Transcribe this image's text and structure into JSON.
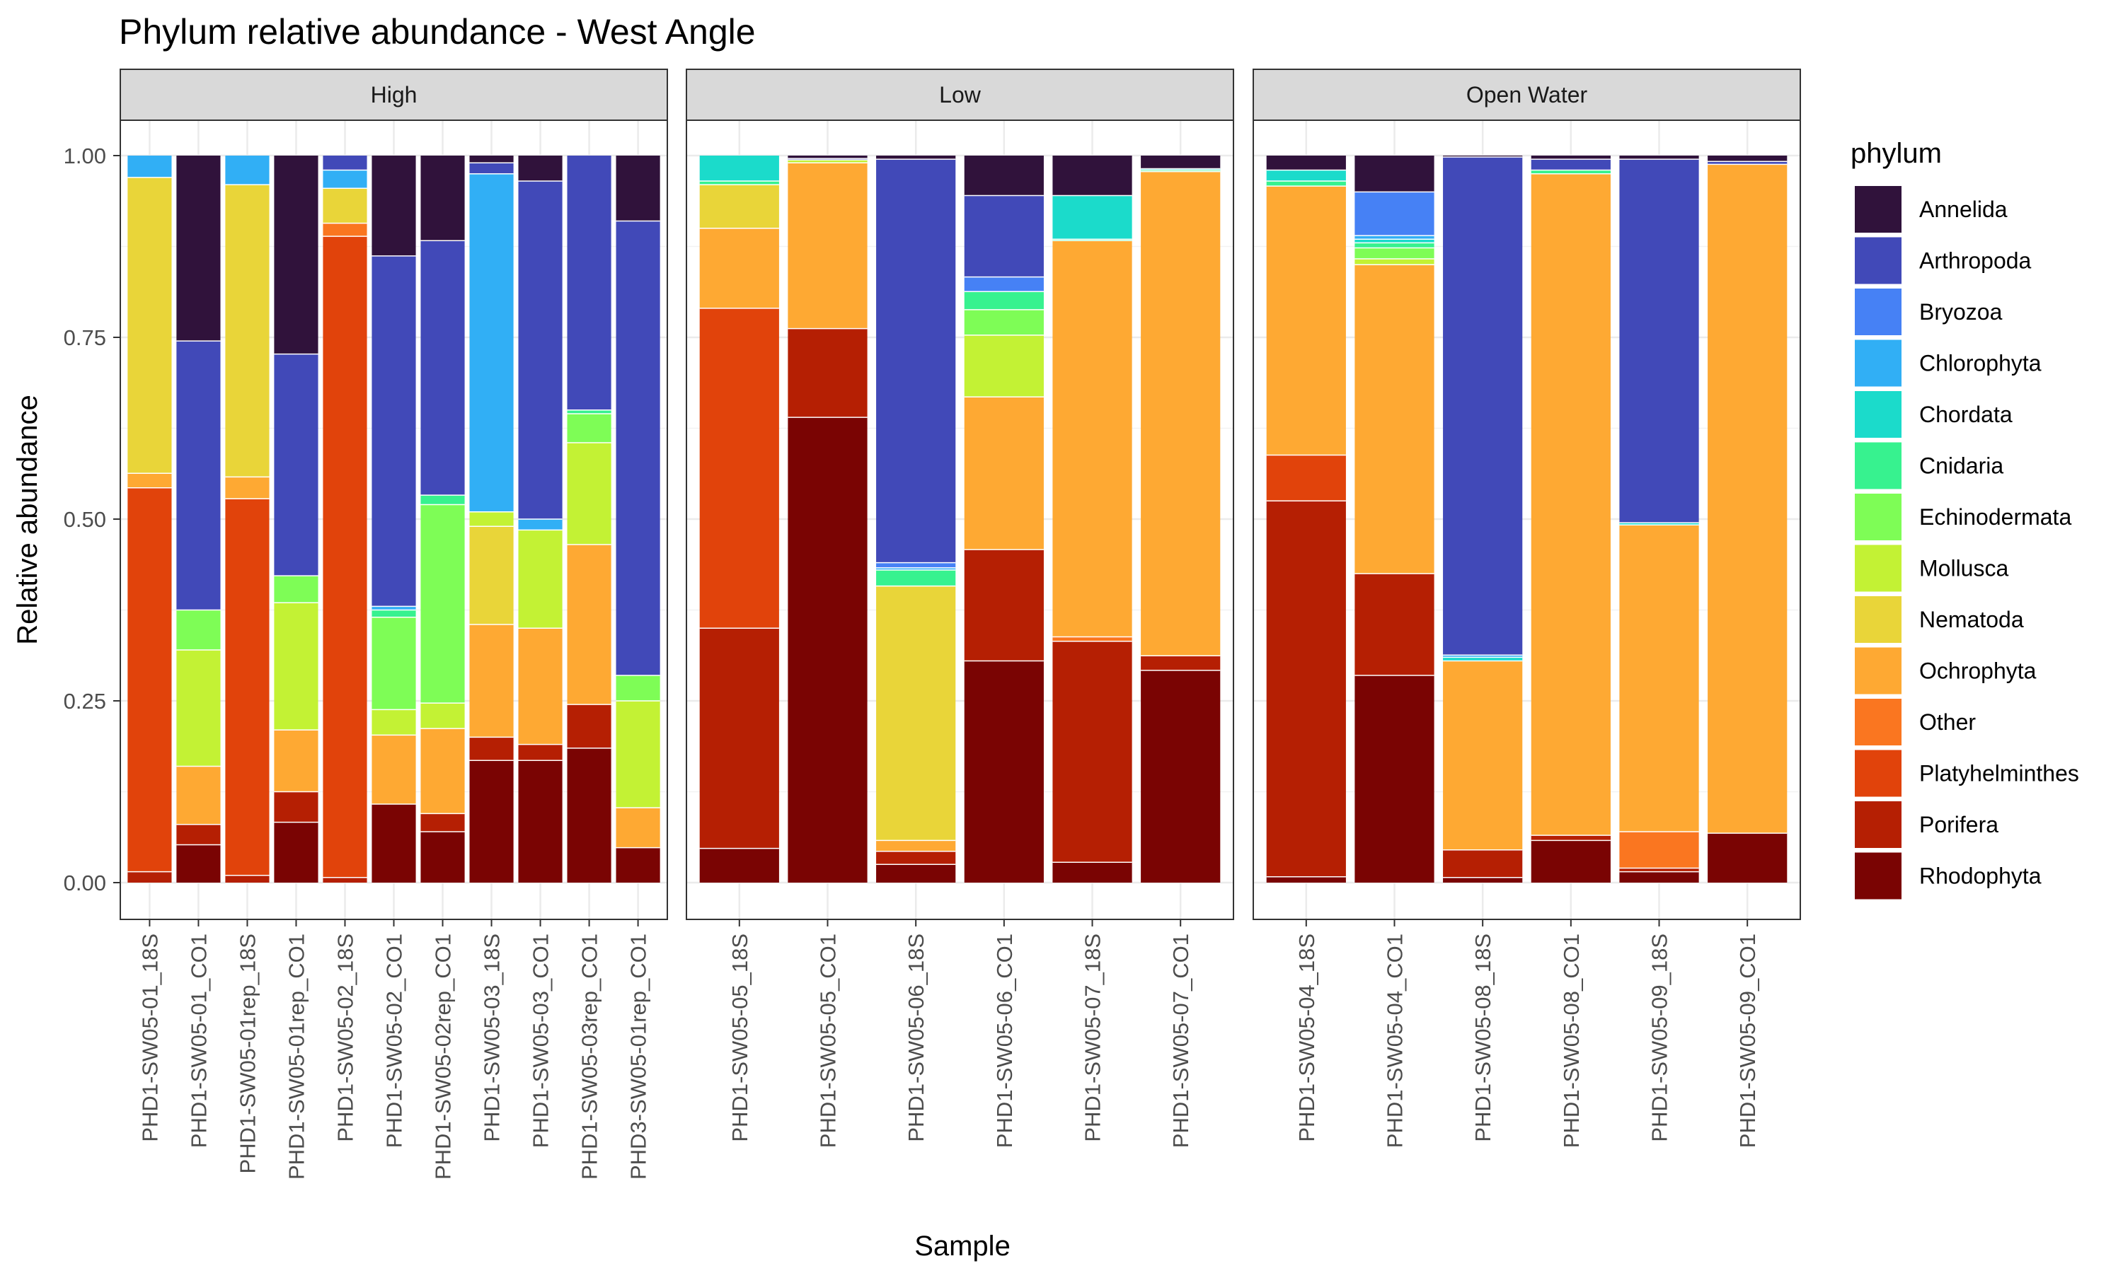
{
  "chart_data": {
    "type": "bar",
    "stacked": true,
    "title": "Phylum relative abundance - West Angle",
    "xlabel": "Sample",
    "ylabel": "Relative abundance",
    "ylim": [
      0,
      1
    ],
    "yticks": [
      0,
      0.25,
      0.5,
      0.75,
      1
    ],
    "ytick_labels": [
      "0.00",
      "0.25",
      "0.50",
      "0.75",
      "1.00"
    ],
    "grid": true,
    "legend_position": "right",
    "legend": {
      "title": "phylum",
      "entries": [
        {
          "name": "Annelida",
          "color": "#30123b"
        },
        {
          "name": "Arthropoda",
          "color": "#4149b8"
        },
        {
          "name": "Bryozoa",
          "color": "#4681f5"
        },
        {
          "name": "Chlorophyta",
          "color": "#31aff5"
        },
        {
          "name": "Chordata",
          "color": "#1bdbcb"
        },
        {
          "name": "Cnidaria",
          "color": "#37f28f"
        },
        {
          "name": "Echinodermata",
          "color": "#7efd56"
        },
        {
          "name": "Mollusca",
          "color": "#c3f234"
        },
        {
          "name": "Nematoda",
          "color": "#e9d539"
        },
        {
          "name": "Ochrophyta",
          "color": "#fea933"
        },
        {
          "name": "Other",
          "color": "#fa7620"
        },
        {
          "name": "Platyhelminthes",
          "color": "#e1430b"
        },
        {
          "name": "Porifera",
          "color": "#b51f03"
        },
        {
          "name": "Rhodophyta",
          "color": "#7a0403"
        }
      ]
    },
    "stack_order": [
      "Rhodophyta",
      "Porifera",
      "Platyhelminthes",
      "Other",
      "Ochrophyta",
      "Nematoda",
      "Mollusca",
      "Echinodermata",
      "Cnidaria",
      "Chordata",
      "Chlorophyta",
      "Bryozoa",
      "Arthropoda",
      "Annelida"
    ],
    "facets": [
      {
        "label": "High",
        "samples": [
          {
            "name": "PHD1-SW05-01_18S",
            "values": {
              "Rhodophyta": 0,
              "Porifera": 0.015,
              "Platyhelminthes": 0.528,
              "Other": 0,
              "Ochrophyta": 0.02,
              "Nematoda": 0.407,
              "Mollusca": 0,
              "Echinodermata": 0,
              "Cnidaria": 0,
              "Chordata": 0,
              "Chlorophyta": 0.03,
              "Bryozoa": 0,
              "Arthropoda": 0,
              "Annelida": 0
            }
          },
          {
            "name": "PHD1-SW05-01_CO1",
            "values": {
              "Rhodophyta": 0.052,
              "Porifera": 0.028,
              "Platyhelminthes": 0,
              "Other": 0,
              "Ochrophyta": 0.08,
              "Nematoda": 0,
              "Mollusca": 0.16,
              "Echinodermata": 0.055,
              "Cnidaria": 0,
              "Chordata": 0,
              "Chlorophyta": 0,
              "Bryozoa": 0,
              "Arthropoda": 0.37,
              "Annelida": 0.255
            }
          },
          {
            "name": "PHD1-SW05-01rep_18S",
            "values": {
              "Rhodophyta": 0,
              "Porifera": 0.01,
              "Platyhelminthes": 0.518,
              "Other": 0,
              "Ochrophyta": 0.03,
              "Nematoda": 0.402,
              "Mollusca": 0,
              "Echinodermata": 0,
              "Cnidaria": 0,
              "Chordata": 0,
              "Chlorophyta": 0.04,
              "Bryozoa": 0,
              "Arthropoda": 0,
              "Annelida": 0
            }
          },
          {
            "name": "PHD1-SW05-01rep_CO1",
            "values": {
              "Rhodophyta": 0.083,
              "Porifera": 0.042,
              "Platyhelminthes": 0,
              "Other": 0,
              "Ochrophyta": 0.085,
              "Nematoda": 0,
              "Mollusca": 0.175,
              "Echinodermata": 0.037,
              "Cnidaria": 0,
              "Chordata": 0,
              "Chlorophyta": 0,
              "Bryozoa": 0,
              "Arthropoda": 0.305,
              "Annelida": 0.273
            }
          },
          {
            "name": "PHD1-SW05-02_18S",
            "values": {
              "Rhodophyta": 0,
              "Porifera": 0.007,
              "Platyhelminthes": 0.882,
              "Other": 0.018,
              "Ochrophyta": 0,
              "Nematoda": 0.048,
              "Mollusca": 0,
              "Echinodermata": 0,
              "Cnidaria": 0,
              "Chordata": 0,
              "Chlorophyta": 0.025,
              "Bryozoa": 0,
              "Arthropoda": 0.02,
              "Annelida": 0
            }
          },
          {
            "name": "PHD1-SW05-02_CO1",
            "values": {
              "Rhodophyta": 0.108,
              "Porifera": 0,
              "Platyhelminthes": 0,
              "Other": 0,
              "Ochrophyta": 0.095,
              "Nematoda": 0,
              "Mollusca": 0.035,
              "Echinodermata": 0.127,
              "Cnidaria": 0.01,
              "Chordata": 0,
              "Chlorophyta": 0.005,
              "Bryozoa": 0,
              "Arthropoda": 0.482,
              "Annelida": 0.138
            }
          },
          {
            "name": "PHD1-SW05-02rep_CO1",
            "values": {
              "Rhodophyta": 0.07,
              "Porifera": 0.025,
              "Platyhelminthes": 0,
              "Other": 0,
              "Ochrophyta": 0.117,
              "Nematoda": 0,
              "Mollusca": 0.035,
              "Echinodermata": 0.273,
              "Cnidaria": 0.013,
              "Chordata": 0,
              "Chlorophyta": 0,
              "Bryozoa": 0,
              "Arthropoda": 0.35,
              "Annelida": 0.117
            }
          },
          {
            "name": "PHD1-SW05-03_18S",
            "values": {
              "Rhodophyta": 0.168,
              "Porifera": 0.032,
              "Platyhelminthes": 0,
              "Other": 0,
              "Ochrophyta": 0.155,
              "Nematoda": 0.135,
              "Mollusca": 0.02,
              "Echinodermata": 0,
              "Cnidaria": 0,
              "Chordata": 0,
              "Chlorophyta": 0.465,
              "Bryozoa": 0,
              "Arthropoda": 0.015,
              "Annelida": 0.01
            }
          },
          {
            "name": "PHD1-SW05-03_CO1",
            "values": {
              "Rhodophyta": 0.168,
              "Porifera": 0.022,
              "Platyhelminthes": 0,
              "Other": 0,
              "Ochrophyta": 0.16,
              "Nematoda": 0,
              "Mollusca": 0.135,
              "Echinodermata": 0,
              "Cnidaria": 0,
              "Chordata": 0,
              "Chlorophyta": 0.015,
              "Bryozoa": 0,
              "Arthropoda": 0.465,
              "Annelida": 0.035
            }
          },
          {
            "name": "PHD1-SW05-03rep_CO1",
            "values": {
              "Rhodophyta": 0.185,
              "Porifera": 0.06,
              "Platyhelminthes": 0,
              "Other": 0,
              "Ochrophyta": 0.22,
              "Nematoda": 0,
              "Mollusca": 0.14,
              "Echinodermata": 0.04,
              "Cnidaria": 0.005,
              "Chordata": 0,
              "Chlorophyta": 0,
              "Bryozoa": 0,
              "Arthropoda": 0.35,
              "Annelida": 0
            }
          },
          {
            "name": "PHD3-SW05-01rep_CO1",
            "values": {
              "Rhodophyta": 0.048,
              "Porifera": 0,
              "Platyhelminthes": 0,
              "Other": 0,
              "Ochrophyta": 0.055,
              "Nematoda": 0,
              "Mollusca": 0.147,
              "Echinodermata": 0.035,
              "Cnidaria": 0,
              "Chordata": 0,
              "Chlorophyta": 0,
              "Bryozoa": 0,
              "Arthropoda": 0.625,
              "Annelida": 0.09
            }
          }
        ]
      },
      {
        "label": "Low",
        "samples": [
          {
            "name": "PHD1-SW05-05_18S",
            "values": {
              "Rhodophyta": 0.047,
              "Porifera": 0.303,
              "Platyhelminthes": 0.44,
              "Other": 0,
              "Ochrophyta": 0.11,
              "Nematoda": 0.06,
              "Mollusca": 0,
              "Echinodermata": 0,
              "Cnidaria": 0.005,
              "Chordata": 0.035,
              "Chlorophyta": 0,
              "Bryozoa": 0,
              "Arthropoda": 0,
              "Annelida": 0
            }
          },
          {
            "name": "PHD1-SW05-05_CO1",
            "values": {
              "Rhodophyta": 0.64,
              "Porifera": 0.122,
              "Platyhelminthes": 0,
              "Other": 0,
              "Ochrophyta": 0.228,
              "Nematoda": 0,
              "Mollusca": 0.004,
              "Echinodermata": 0,
              "Cnidaria": 0,
              "Chordata": 0,
              "Chlorophyta": 0,
              "Bryozoa": 0,
              "Arthropoda": 0.002,
              "Annelida": 0.004
            }
          },
          {
            "name": "PHD1-SW05-06_18S",
            "values": {
              "Rhodophyta": 0.025,
              "Porifera": 0.018,
              "Platyhelminthes": 0,
              "Other": 0,
              "Ochrophyta": 0.015,
              "Nematoda": 0.35,
              "Mollusca": 0,
              "Echinodermata": 0,
              "Cnidaria": 0.022,
              "Chordata": 0,
              "Chlorophyta": 0.003,
              "Bryozoa": 0.007,
              "Arthropoda": 0.555,
              "Annelida": 0.005
            }
          },
          {
            "name": "PHD1-SW05-06_CO1",
            "values": {
              "Rhodophyta": 0.305,
              "Porifera": 0.153,
              "Platyhelminthes": 0,
              "Other": 0,
              "Ochrophyta": 0.21,
              "Nematoda": 0,
              "Mollusca": 0.085,
              "Echinodermata": 0.035,
              "Cnidaria": 0.025,
              "Chordata": 0,
              "Chlorophyta": 0,
              "Bryozoa": 0.02,
              "Arthropoda": 0.112,
              "Annelida": 0.055
            }
          },
          {
            "name": "PHD1-SW05-07_18S",
            "values": {
              "Rhodophyta": 0.028,
              "Porifera": 0.304,
              "Platyhelminthes": 0,
              "Other": 0.006,
              "Ochrophyta": 0.545,
              "Nematoda": 0,
              "Mollusca": 0,
              "Echinodermata": 0,
              "Cnidaria": 0.002,
              "Chordata": 0.06,
              "Chlorophyta": 0,
              "Bryozoa": 0,
              "Arthropoda": 0,
              "Annelida": 0.055
            }
          },
          {
            "name": "PHD1-SW05-07_CO1",
            "values": {
              "Rhodophyta": 0.292,
              "Porifera": 0.02,
              "Platyhelminthes": 0,
              "Other": 0,
              "Ochrophyta": 0.666,
              "Nematoda": 0,
              "Mollusca": 0,
              "Echinodermata": 0,
              "Cnidaria": 0.002,
              "Chordata": 0.002,
              "Chlorophyta": 0,
              "Bryozoa": 0,
              "Arthropoda": 0,
              "Annelida": 0.018
            }
          }
        ]
      },
      {
        "label": "Open Water",
        "samples": [
          {
            "name": "PHD1-SW05-04_18S",
            "values": {
              "Rhodophyta": 0.008,
              "Porifera": 0.517,
              "Platyhelminthes": 0.063,
              "Other": 0,
              "Ochrophyta": 0.37,
              "Nematoda": 0,
              "Mollusca": 0,
              "Echinodermata": 0,
              "Cnidaria": 0.007,
              "Chordata": 0.015,
              "Chlorophyta": 0,
              "Bryozoa": 0,
              "Arthropoda": 0,
              "Annelida": 0.02
            }
          },
          {
            "name": "PHD1-SW05-04_CO1",
            "values": {
              "Rhodophyta": 0.285,
              "Porifera": 0.14,
              "Platyhelminthes": 0,
              "Other": 0,
              "Ochrophyta": 0.425,
              "Nematoda": 0,
              "Mollusca": 0.008,
              "Echinodermata": 0.015,
              "Cnidaria": 0.007,
              "Chordata": 0.005,
              "Chlorophyta": 0.005,
              "Bryozoa": 0.06,
              "Arthropoda": 0,
              "Annelida": 0.05
            }
          },
          {
            "name": "PHD1-SW05-08_18S",
            "values": {
              "Rhodophyta": 0.007,
              "Porifera": 0.038,
              "Platyhelminthes": 0,
              "Other": 0,
              "Ochrophyta": 0.26,
              "Nematoda": 0,
              "Mollusca": 0,
              "Echinodermata": 0,
              "Cnidaria": 0,
              "Chordata": 0.005,
              "Chlorophyta": 0.003,
              "Bryozoa": 0,
              "Arthropoda": 0.685,
              "Annelida": 0.002
            }
          },
          {
            "name": "PHD1-SW05-08_CO1",
            "values": {
              "Rhodophyta": 0.058,
              "Porifera": 0.007,
              "Platyhelminthes": 0,
              "Other": 0,
              "Ochrophyta": 0.91,
              "Nematoda": 0,
              "Mollusca": 0,
              "Echinodermata": 0,
              "Cnidaria": 0.005,
              "Chordata": 0,
              "Chlorophyta": 0,
              "Bryozoa": 0,
              "Arthropoda": 0.015,
              "Annelida": 0.005
            }
          },
          {
            "name": "PHD1-SW05-09_18S",
            "values": {
              "Rhodophyta": 0.015,
              "Porifera": 0.005,
              "Platyhelminthes": 0,
              "Other": 0.05,
              "Ochrophyta": 0.422,
              "Nematoda": 0,
              "Mollusca": 0,
              "Echinodermata": 0,
              "Cnidaria": 0,
              "Chordata": 0.003,
              "Chlorophyta": 0,
              "Bryozoa": 0,
              "Arthropoda": 0.5,
              "Annelida": 0.005
            }
          },
          {
            "name": "PHD1-SW05-09_CO1",
            "values": {
              "Rhodophyta": 0.068,
              "Porifera": 0,
              "Platyhelminthes": 0,
              "Other": 0,
              "Ochrophyta": 0.92,
              "Nematoda": 0,
              "Mollusca": 0,
              "Echinodermata": 0,
              "Cnidaria": 0,
              "Chordata": 0,
              "Chlorophyta": 0,
              "Bryozoa": 0,
              "Arthropoda": 0.004,
              "Annelida": 0.008
            }
          }
        ]
      }
    ]
  }
}
